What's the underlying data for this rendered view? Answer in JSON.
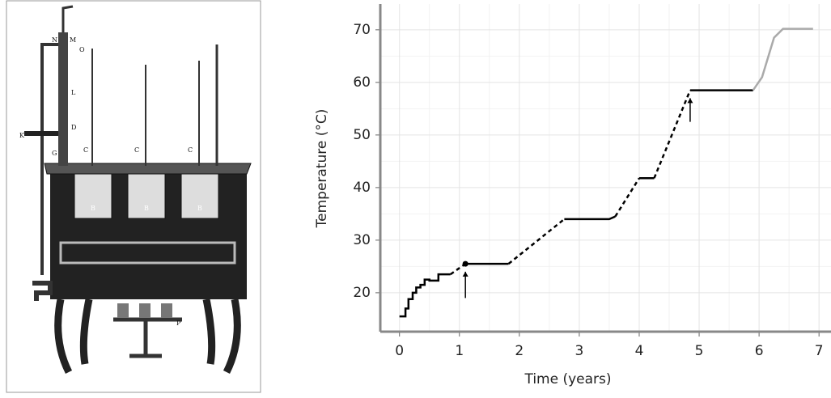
{
  "illustration": {
    "labels": [
      "N",
      "M",
      "O",
      "L",
      "K",
      "G",
      "D",
      "C",
      "C",
      "C",
      "B",
      "B",
      "B",
      "P"
    ]
  },
  "chart_data": {
    "type": "line",
    "xlabel": "Time (years)",
    "ylabel": "Temperature (°C)",
    "xlim": [
      -0.32,
      7.2
    ],
    "xticks": [
      0,
      1,
      2,
      3,
      4,
      5,
      6,
      7
    ],
    "ylim": [
      12.6,
      74.9
    ],
    "yticks": [
      20,
      30,
      40,
      50,
      60,
      70
    ],
    "grid": true,
    "series": [
      {
        "color": "#000000",
        "style": "solid",
        "x": [
          0,
          0.1,
          0.1,
          0.15,
          0.15,
          0.22,
          0.22,
          0.28,
          0.28,
          0.35,
          0.35,
          0.42,
          0.42,
          0.5,
          0.5,
          0.65,
          0.65,
          0.85,
          null,
          1.1,
          1.82,
          null,
          2.75,
          3.5,
          3.6,
          null,
          4.0,
          4.25,
          null,
          4.85,
          5.9
        ],
        "values": [
          15.5,
          15.5,
          17,
          17,
          18.8,
          18.8,
          20,
          20,
          21,
          21,
          21.5,
          21.5,
          22.5,
          22.5,
          22.3,
          22.3,
          23.5,
          23.5,
          null,
          25.5,
          25.5,
          null,
          34,
          34,
          34.5,
          null,
          41.8,
          41.8,
          null,
          58.5,
          58.5
        ]
      },
      {
        "color": "#000000",
        "style": "dashed",
        "x": [
          0.85,
          1.1,
          null,
          1.82,
          2.75,
          null,
          3.6,
          4.0,
          null,
          4.25,
          4.85
        ],
        "values": [
          23.5,
          25.5,
          null,
          25.5,
          34,
          null,
          34.5,
          41.8,
          null,
          41.8,
          58.5
        ]
      },
      {
        "color": "#aaaaaa",
        "style": "solid",
        "x": [
          5.9,
          6.05,
          6.25,
          6.4,
          6.9
        ],
        "values": [
          58.5,
          61,
          68.5,
          70.2,
          70.2
        ]
      }
    ],
    "points": {
      "x": [
        1.1
      ],
      "values": [
        25.5
      ]
    },
    "arrows": [
      {
        "x": 1.1,
        "from": 19,
        "to": 24
      },
      {
        "x": 4.85,
        "from": 52.5,
        "to": 57
      }
    ]
  }
}
